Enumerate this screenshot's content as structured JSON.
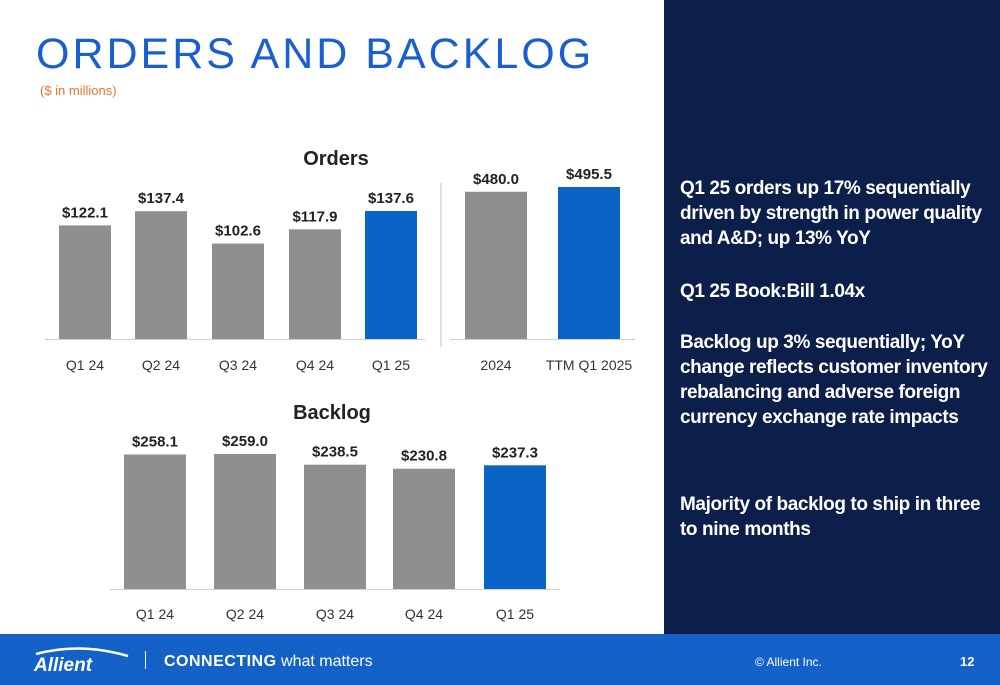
{
  "header": {
    "title": "ORDERS AND BACKLOG",
    "subtitle": "($ in millions)"
  },
  "colors": {
    "bar_gray": "#8f8f8f",
    "bar_highlight": "#0a64c8",
    "panel_bg": "#0c1f4b",
    "footer_bg": "#1461c8",
    "title": "#1a5fd0",
    "subtitle": "#e8762d"
  },
  "chart_data": [
    {
      "type": "bar",
      "title": "Orders",
      "categories": [
        "Q1 24",
        "Q2 24",
        "Q3 24",
        "Q4 24",
        "Q1 25"
      ],
      "values": [
        122.1,
        137.4,
        102.6,
        117.9,
        137.6
      ],
      "labels": [
        "$122.1",
        "$137.4",
        "$102.6",
        "$117.9",
        "$137.6"
      ],
      "highlight_index": 4,
      "ylim": [
        0,
        160
      ]
    },
    {
      "type": "bar",
      "title": "",
      "categories": [
        "2024",
        "TTM Q1 2025"
      ],
      "values": [
        480.0,
        495.5
      ],
      "labels": [
        "$480.0",
        "$495.5"
      ],
      "highlight_index": 1,
      "ylim": [
        0,
        560
      ]
    },
    {
      "type": "bar",
      "title": "Backlog",
      "categories": [
        "Q1 24",
        "Q2 24",
        "Q3 24",
        "Q4 24",
        "Q1 25"
      ],
      "values": [
        258.1,
        259.0,
        238.5,
        230.8,
        237.3
      ],
      "labels": [
        "$258.1",
        "$259.0",
        "$238.5",
        "$230.8",
        "$237.3"
      ],
      "highlight_index": 4,
      "ylim": [
        0,
        300
      ]
    }
  ],
  "bullets": [
    "Q1 25 orders up 17% sequentially driven by strength in power quality and A&D; up 13% YoY",
    "Q1 25 Book:Bill 1.04x",
    "Backlog up 3% sequentially; YoY change reflects customer inventory rebalancing and adverse foreign currency exchange rate impacts",
    "Majority of backlog to ship in three to nine months"
  ],
  "footer": {
    "logo_text": "Allient",
    "tagline_strong": "CONNECTING",
    "tagline_rest": " what matters",
    "copyright": "© Allient Inc.",
    "page_number": "12"
  }
}
